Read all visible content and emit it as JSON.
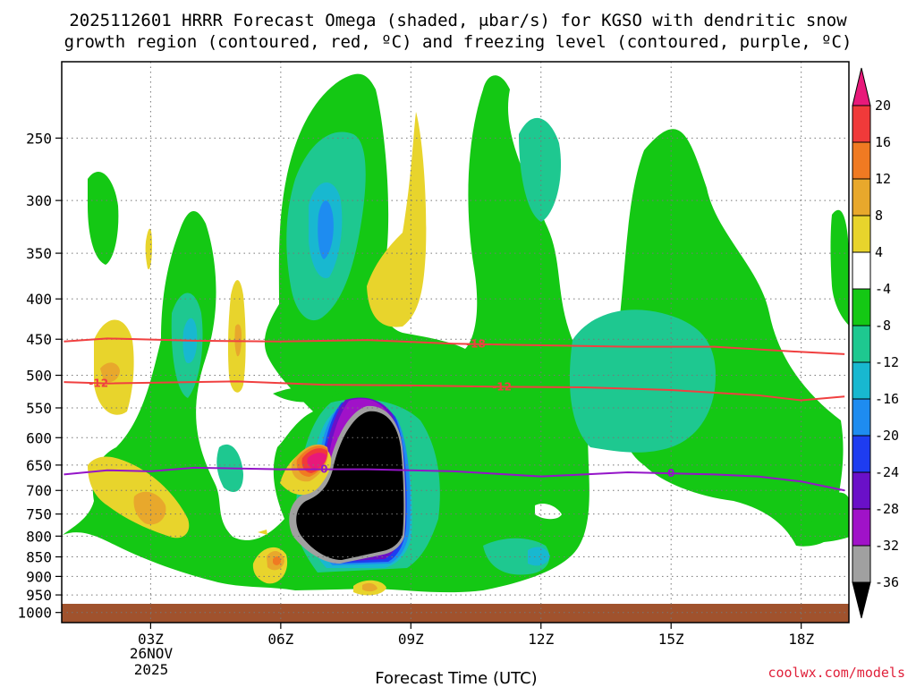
{
  "chart_data": {
    "type": "heatmap",
    "title_line1": "2025112601 HRRR Forecast Omega (shaded, μbar/s) for KGSO with dendritic snow",
    "title_line2": "growth region (contoured, red, ºC) and freezing level (contoured, purple, ºC)",
    "xlabel": "Forecast Time (UTC)",
    "x_ticks": [
      "03Z",
      "06Z",
      "09Z",
      "12Z",
      "15Z",
      "18Z"
    ],
    "x_tick_hours": [
      3,
      6,
      9,
      12,
      15,
      18
    ],
    "x_range_hours": [
      0.95,
      19.1
    ],
    "date_label": [
      "26NOV",
      "2025"
    ],
    "y_ticks": [
      250,
      300,
      350,
      400,
      450,
      500,
      550,
      600,
      650,
      700,
      750,
      800,
      850,
      900,
      950,
      1000
    ],
    "y_range_hPa": [
      200,
      1030
    ],
    "y_scale": "log-pressure",
    "colorbar_labels": [
      "20",
      "16",
      "12",
      "8",
      "4",
      "-4",
      "-8",
      "-12",
      "-16",
      "-20",
      "-24",
      "-28",
      "-32",
      "-36"
    ],
    "colorbar_colors": [
      "#e8197a",
      "#f03a3a",
      "#f07a22",
      "#e8a82c",
      "#e8d42c",
      "#ffffff",
      "#14c814",
      "#1ec890",
      "#18b8d0",
      "#1e8cf0",
      "#1e3cf0",
      "#6a10c8",
      "#a012c8",
      "#a0a0a0",
      "#000000"
    ],
    "contours": [
      {
        "name": "dgz-top",
        "label": "-18",
        "color": "#f04040",
        "hours": [
          1,
          2,
          4,
          6,
          8,
          10,
          12,
          14,
          16,
          18,
          19
        ],
        "hPa": [
          453,
          449,
          452,
          453,
          451,
          456,
          458,
          460,
          460,
          467,
          470
        ]
      },
      {
        "name": "dgz-bottom",
        "label": "-12",
        "color": "#f04040",
        "hours": [
          1,
          2,
          5,
          7,
          9,
          11,
          13,
          15,
          17,
          18,
          19
        ],
        "hPa": [
          510,
          512,
          509,
          514,
          515,
          517,
          518,
          522,
          530,
          538,
          532
        ]
      },
      {
        "name": "freezing-level",
        "label": "0",
        "color": "#9414c8",
        "hours": [
          1,
          2,
          3,
          4,
          6,
          8,
          10,
          12,
          14,
          16,
          17,
          18,
          19
        ],
        "hPa": [
          668,
          660,
          662,
          655,
          658,
          658,
          662,
          672,
          664,
          668,
          672,
          682,
          700
        ]
      }
    ],
    "omega_features": [
      {
        "name": "strong-ascent-core",
        "min_value": -36,
        "hours": [
          7.0,
          9.0
        ],
        "hPa": [
          560,
          910
        ]
      },
      {
        "name": "upper-ascent-band",
        "min_value": -16,
        "hours": [
          5.6,
          8.8
        ],
        "hPa": [
          195,
          520
        ]
      },
      {
        "name": "descent-max",
        "max_value": 20,
        "hours": [
          6.4,
          7.2
        ],
        "hPa": [
          600,
          720
        ]
      }
    ],
    "surface_fill": {
      "from_hPa": 975,
      "to_hPa": 1030,
      "color": "#a0522d"
    }
  },
  "credit": "coolwx.com/models"
}
